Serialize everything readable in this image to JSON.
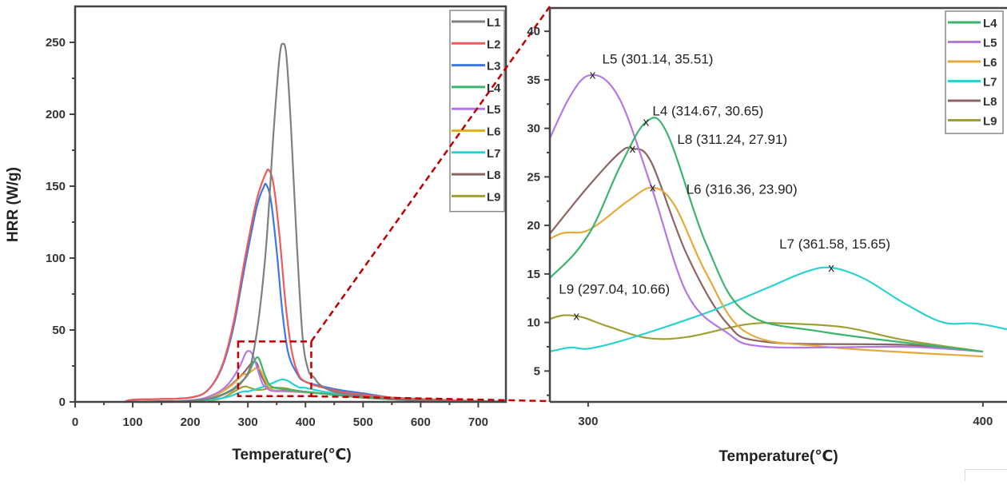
{
  "chart_data": [
    {
      "type": "line",
      "title": "",
      "xlabel": "Temperature(℃)",
      "ylabel": "HRR (W/g)",
      "xlim": [
        0,
        748
      ],
      "ylim": [
        0,
        275
      ],
      "xticks": [
        0,
        100,
        200,
        300,
        400,
        500,
        600,
        700
      ],
      "yticks": [
        0,
        50,
        100,
        150,
        200,
        250
      ],
      "grid": false,
      "legend_position": "top-right",
      "zoom_box": {
        "x": [
          283,
          410
        ],
        "y": [
          4,
          42
        ]
      },
      "series": [
        {
          "name": "L1",
          "color": "#7f7f7f",
          "points": [
            [
              85,
              0
            ],
            [
              150,
              0.5
            ],
            [
              200,
              1
            ],
            [
              250,
              4
            ],
            [
              290,
              14
            ],
            [
              310,
              35
            ],
            [
              330,
              100
            ],
            [
              345,
              190
            ],
            [
              355,
              240
            ],
            [
              361,
              249
            ],
            [
              367,
              240
            ],
            [
              375,
              190
            ],
            [
              385,
              110
            ],
            [
              395,
              45
            ],
            [
              405,
              22
            ],
            [
              415,
              17
            ],
            [
              425,
              12
            ],
            [
              450,
              7
            ],
            [
              500,
              4
            ],
            [
              550,
              2
            ],
            [
              600,
              1
            ],
            [
              700,
              0.3
            ],
            [
              745,
              0.1
            ]
          ]
        },
        {
          "name": "L2",
          "color": "#f05a5a",
          "points": [
            [
              85,
              0
            ],
            [
              100,
              1.5
            ],
            [
              150,
              2
            ],
            [
              200,
              3
            ],
            [
              230,
              8
            ],
            [
              255,
              25
            ],
            [
              275,
              55
            ],
            [
              295,
              100
            ],
            [
              315,
              140
            ],
            [
              330,
              158
            ],
            [
              337,
              161
            ],
            [
              345,
              150
            ],
            [
              355,
              115
            ],
            [
              365,
              70
            ],
            [
              375,
              38
            ],
            [
              385,
              22
            ],
            [
              400,
              14
            ],
            [
              450,
              8
            ],
            [
              500,
              5
            ],
            [
              550,
              3
            ],
            [
              600,
              2
            ],
            [
              700,
              0.5
            ],
            [
              745,
              0.2
            ]
          ]
        },
        {
          "name": "L3",
          "color": "#3c78e6",
          "points": [
            [
              85,
              0
            ],
            [
              100,
              1.5
            ],
            [
              150,
              2
            ],
            [
              200,
              3
            ],
            [
              230,
              8
            ],
            [
              255,
              24
            ],
            [
              275,
              52
            ],
            [
              295,
              95
            ],
            [
              315,
              135
            ],
            [
              327,
              149
            ],
            [
              332,
              151
            ],
            [
              340,
              140
            ],
            [
              350,
              105
            ],
            [
              360,
              62
            ],
            [
              370,
              34
            ],
            [
              385,
              20
            ],
            [
              400,
              14
            ],
            [
              450,
              9
            ],
            [
              500,
              6
            ],
            [
              550,
              3
            ],
            [
              600,
              2
            ],
            [
              700,
              0.5
            ],
            [
              745,
              0.2
            ]
          ]
        },
        {
          "name": "L4",
          "color": "#3cb46e",
          "points": [
            [
              110,
              0
            ],
            [
              200,
              0.5
            ],
            [
              240,
              3
            ],
            [
              270,
              8
            ],
            [
              290,
              14.5
            ],
            [
              300,
              19
            ],
            [
              308,
              26
            ],
            [
              314.67,
              30.65
            ],
            [
              320,
              29.5
            ],
            [
              330,
              18
            ],
            [
              340,
              11
            ],
            [
              360,
              9
            ],
            [
              400,
              7
            ],
            [
              450,
              5
            ],
            [
              500,
              3
            ],
            [
              600,
              1
            ],
            [
              745,
              0.2
            ]
          ]
        },
        {
          "name": "L5",
          "color": "#b478e6",
          "points": [
            [
              100,
              0
            ],
            [
              200,
              1
            ],
            [
              240,
              5
            ],
            [
              265,
              12
            ],
            [
              285,
              24
            ],
            [
              295,
              33
            ],
            [
              301.14,
              35.51
            ],
            [
              308,
              33
            ],
            [
              316,
              24
            ],
            [
              325,
              13
            ],
            [
              335,
              9
            ],
            [
              345,
              7.5
            ],
            [
              380,
              7.5
            ],
            [
              400,
              7
            ],
            [
              450,
              5
            ],
            [
              500,
              3
            ],
            [
              600,
              1
            ],
            [
              745,
              0.2
            ]
          ]
        },
        {
          "name": "L6",
          "color": "#e6aa3c",
          "points": [
            [
              110,
              0
            ],
            [
              200,
              0.5
            ],
            [
              240,
              4
            ],
            [
              270,
              11
            ],
            [
              290,
              18.5
            ],
            [
              300,
              19.5
            ],
            [
              310,
              22.5
            ],
            [
              316.36,
              23.9
            ],
            [
              322,
              22
            ],
            [
              330,
              15
            ],
            [
              340,
              9
            ],
            [
              360,
              7.5
            ],
            [
              400,
              6.5
            ],
            [
              450,
              5
            ],
            [
              500,
              3
            ],
            [
              600,
              1
            ],
            [
              745,
              0.2
            ]
          ]
        },
        {
          "name": "L7",
          "color": "#28d2d2",
          "points": [
            [
              110,
              0
            ],
            [
              200,
              0.5
            ],
            [
              260,
              3
            ],
            [
              285,
              6.5
            ],
            [
              295,
              7.4
            ],
            [
              300,
              7.3
            ],
            [
              310,
              8.3
            ],
            [
              330,
              11
            ],
            [
              345,
              13.5
            ],
            [
              355,
              15.2
            ],
            [
              361.58,
              15.65
            ],
            [
              370,
              14.5
            ],
            [
              380,
              12
            ],
            [
              390,
              10
            ],
            [
              400,
              9.8
            ],
            [
              420,
              8
            ],
            [
              450,
              6
            ],
            [
              500,
              4
            ],
            [
              600,
              1.5
            ],
            [
              745,
              0.3
            ]
          ]
        },
        {
          "name": "L8",
          "color": "#8c6464",
          "points": [
            [
              110,
              0
            ],
            [
              200,
              0.5
            ],
            [
              240,
              4
            ],
            [
              265,
              10
            ],
            [
              290,
              19
            ],
            [
              300,
              24
            ],
            [
              308,
              27.5
            ],
            [
              311.24,
              27.91
            ],
            [
              316,
              26.5
            ],
            [
              325,
              17
            ],
            [
              335,
              10
            ],
            [
              345,
              8
            ],
            [
              380,
              7.7
            ],
            [
              400,
              7
            ],
            [
              450,
              5
            ],
            [
              500,
              3
            ],
            [
              600,
              1
            ],
            [
              745,
              0.2
            ]
          ]
        },
        {
          "name": "L9",
          "color": "#a0a032",
          "points": [
            [
              120,
              0
            ],
            [
              200,
              0.3
            ],
            [
              250,
              2
            ],
            [
              275,
              7
            ],
            [
              290,
              10.3
            ],
            [
              297.04,
              10.66
            ],
            [
              305,
              9.6
            ],
            [
              315,
              8.4
            ],
            [
              325,
              8.5
            ],
            [
              340,
              9.8
            ],
            [
              350,
              9.9
            ],
            [
              365,
              9.5
            ],
            [
              380,
              8.2
            ],
            [
              400,
              7
            ],
            [
              450,
              5
            ],
            [
              500,
              3
            ],
            [
              600,
              1
            ],
            [
              745,
              0.2
            ]
          ]
        }
      ]
    },
    {
      "type": "line",
      "title": "",
      "xlabel": "Temperature(℃)",
      "ylabel": "",
      "xlim": [
        290.3,
        405.7
      ],
      "ylim": [
        1.9,
        42.4
      ],
      "xticks": [
        300,
        400
      ],
      "yticks": [
        5,
        10,
        15,
        20,
        25,
        30,
        35,
        40
      ],
      "grid": false,
      "legend_position": "top-right",
      "series_names": [
        "L4",
        "L5",
        "L6",
        "L7",
        "L8",
        "L9"
      ],
      "annotations": [
        {
          "series": "L5",
          "x": 301.14,
          "y": 35.51,
          "label": "L5 (301.14, 35.51)"
        },
        {
          "series": "L4",
          "x": 314.67,
          "y": 30.65,
          "label": "L4 (314.67, 30.65)"
        },
        {
          "series": "L8",
          "x": 311.24,
          "y": 27.91,
          "label": "L8 (311.24, 27.91)"
        },
        {
          "series": "L6",
          "x": 316.36,
          "y": 23.9,
          "label": "L6 (316.36, 23.90)"
        },
        {
          "series": "L7",
          "x": 361.58,
          "y": 15.65,
          "label": "L7 (361.58, 15.65)"
        },
        {
          "series": "L9",
          "x": 297.04,
          "y": 10.66,
          "label": "L9 (297.04, 10.66)"
        }
      ],
      "marker_symbol": "x"
    }
  ]
}
